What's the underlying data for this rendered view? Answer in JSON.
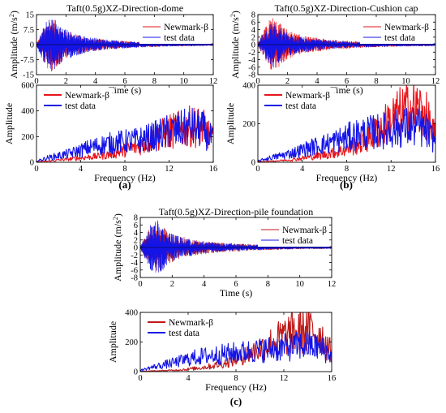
{
  "figure": {
    "panel_labels": [
      "(a)",
      "(b)",
      "(c)"
    ],
    "colors": {
      "newmark": "#e8141b",
      "test": "#1414e6",
      "pile_newmark": "#c01818"
    }
  },
  "chart_data": [
    {
      "type": "line",
      "panel": "a-time",
      "title": "Taft(0.5g)XZ-Direction-dome",
      "xlabel": "Time (s)",
      "ylabel": "Amplitude (m/s2)",
      "xlim": [
        0,
        12
      ],
      "ylim": [
        -15,
        15
      ],
      "xticks": [
        0,
        2,
        4,
        6,
        8,
        10,
        12
      ],
      "yticks": [
        -15,
        -7.5,
        0,
        7.5,
        15
      ],
      "ytick_labels": [
        "-15",
        "-7.5",
        "0",
        "7.5",
        "15"
      ],
      "legend_position": "top-right",
      "series": [
        {
          "name": "Newmark-β",
          "color": "#e8141b",
          "envelope": {
            "t": [
              0,
              0.3,
              0.7,
              1.0,
              1.3,
              1.8,
              2.5,
              3.5,
              5,
              7,
              9,
              12
            ],
            "amp": [
              0.4,
              5,
              12,
              13.5,
              12,
              8,
              5.5,
              3.5,
              2.2,
              1.3,
              0.8,
              0.5
            ]
          }
        },
        {
          "name": "test data",
          "color": "#1414e6",
          "envelope": {
            "t": [
              0,
              0.3,
              0.7,
              1.0,
              1.3,
              1.8,
              2.5,
              3.5,
              5,
              7,
              9,
              12
            ],
            "amp": [
              0.5,
              6,
              12,
              14.5,
              12.5,
              8.5,
              6,
              3.8,
              2.3,
              1.3,
              0.8,
              0.5
            ]
          }
        }
      ]
    },
    {
      "type": "line",
      "panel": "a-freq",
      "title": "",
      "xlabel": "Frequency (Hz)",
      "ylabel": "Amplitude",
      "xlim": [
        0,
        16
      ],
      "ylim": [
        0,
        600
      ],
      "xticks": [
        0,
        4,
        8,
        12,
        16
      ],
      "yticks": [
        0,
        200,
        400,
        600
      ],
      "legend_position": "top-left",
      "series": [
        {
          "name": "Newmark-β",
          "color": "#e8141b",
          "x": [
            0,
            1,
            2,
            3,
            4,
            5,
            6,
            7,
            8,
            9,
            10,
            11,
            12,
            13,
            14,
            15,
            16
          ],
          "y": [
            5,
            10,
            20,
            30,
            40,
            50,
            60,
            80,
            110,
            140,
            180,
            240,
            280,
            300,
            330,
            320,
            200
          ]
        },
        {
          "name": "test data",
          "color": "#1414e6",
          "x": [
            0,
            1,
            2,
            3,
            4,
            5,
            6,
            7,
            8,
            9,
            10,
            11,
            12,
            13,
            14,
            15,
            16
          ],
          "y": [
            10,
            40,
            60,
            80,
            110,
            140,
            160,
            180,
            190,
            200,
            220,
            250,
            280,
            300,
            320,
            300,
            200
          ]
        }
      ]
    },
    {
      "type": "line",
      "panel": "b-time",
      "title": "Taft(0.5g)XZ-Direction-Cushion cap",
      "xlabel": "Time (s)",
      "ylabel": "Amplitude (m/s2)",
      "xlim": [
        0,
        12
      ],
      "ylim": [
        -8,
        8
      ],
      "xticks": [
        0,
        2,
        4,
        6,
        8,
        10,
        12
      ],
      "yticks": [
        -8,
        -6,
        -4,
        -2,
        0,
        2,
        4,
        6,
        8
      ],
      "legend_position": "top-right",
      "series": [
        {
          "name": "Newmark-β",
          "color": "#e8141b",
          "envelope": {
            "t": [
              0,
              0.3,
              0.7,
              1.0,
              1.3,
              1.8,
              2.5,
              3.5,
              5,
              7,
              9,
              12
            ],
            "amp": [
              0.3,
              3,
              6.5,
              7.5,
              6.5,
              4.5,
              3,
              2,
              1.3,
              0.8,
              0.5,
              0.3
            ]
          }
        },
        {
          "name": "test data",
          "color": "#1414e6",
          "envelope": {
            "t": [
              0,
              0.3,
              0.7,
              1.0,
              1.3,
              1.8,
              2.5,
              3.5,
              5,
              7,
              9,
              12
            ],
            "amp": [
              0.3,
              2.5,
              5,
              5.8,
              5,
              3.5,
              2.5,
              1.7,
              1.1,
              0.7,
              0.45,
              0.3
            ]
          }
        }
      ]
    },
    {
      "type": "line",
      "panel": "b-freq",
      "title": "",
      "xlabel": "Frequency (Hz)",
      "ylabel": "Amplitude",
      "xlim": [
        0,
        16
      ],
      "ylim": [
        0,
        400
      ],
      "xticks": [
        0,
        4,
        8,
        12,
        16
      ],
      "yticks": [
        0,
        200,
        400
      ],
      "legend_position": "top-left",
      "series": [
        {
          "name": "Newmark-β",
          "color": "#e8141b",
          "x": [
            0,
            1,
            2,
            3,
            4,
            5,
            6,
            7,
            8,
            9,
            10,
            11,
            12,
            13,
            14,
            15,
            16
          ],
          "y": [
            3,
            6,
            10,
            15,
            25,
            35,
            45,
            60,
            80,
            110,
            150,
            200,
            260,
            300,
            330,
            300,
            150
          ]
        },
        {
          "name": "test data",
          "color": "#1414e6",
          "x": [
            0,
            1,
            2,
            3,
            4,
            5,
            6,
            7,
            8,
            9,
            10,
            11,
            12,
            13,
            14,
            15,
            16
          ],
          "y": [
            8,
            25,
            40,
            55,
            75,
            95,
            110,
            130,
            150,
            170,
            180,
            190,
            200,
            210,
            220,
            200,
            130
          ]
        }
      ]
    },
    {
      "type": "line",
      "panel": "c-time",
      "title": "Taft(0.5g)XZ-Direction-pile foundation",
      "xlabel": "Time (s)",
      "ylabel": "Amplitude (m/s2)",
      "xlim": [
        0,
        12
      ],
      "ylim": [
        -8,
        8
      ],
      "xticks": [
        0,
        2,
        4,
        6,
        8,
        10,
        12
      ],
      "yticks": [
        -8,
        -6,
        -4,
        -2,
        0,
        2,
        4,
        6,
        8
      ],
      "legend_position": "top-right",
      "series": [
        {
          "name": "Newmark-β",
          "color": "#c01818",
          "envelope": {
            "t": [
              0,
              0.3,
              0.7,
              1.0,
              1.3,
              1.8,
              2.5,
              3.5,
              5,
              7,
              9,
              12
            ],
            "amp": [
              0.3,
              3,
              6,
              7,
              6,
              4.2,
              3,
              2,
              1.3,
              0.8,
              0.5,
              0.3
            ]
          }
        },
        {
          "name": "test data",
          "color": "#1414e6",
          "envelope": {
            "t": [
              0,
              0.3,
              0.7,
              1.0,
              1.3,
              1.8,
              2.5,
              3.5,
              5,
              7,
              9,
              12
            ],
            "amp": [
              0.3,
              3,
              6.5,
              7.5,
              6.5,
              4.2,
              2.8,
              1.8,
              1.1,
              0.7,
              0.45,
              0.3
            ]
          }
        }
      ]
    },
    {
      "type": "line",
      "panel": "c-freq",
      "title": "",
      "xlabel": "Frequency (Hz)",
      "ylabel": "Amplitude",
      "xlim": [
        0,
        16
      ],
      "ylim": [
        0,
        400
      ],
      "xticks": [
        0,
        4,
        8,
        12,
        16
      ],
      "yticks": [
        0,
        200,
        400
      ],
      "legend_position": "top-left",
      "series": [
        {
          "name": "Newmark-β",
          "color": "#c01818",
          "x": [
            0,
            1,
            2,
            3,
            4,
            5,
            6,
            7,
            8,
            9,
            10,
            11,
            12,
            13,
            14,
            15,
            16
          ],
          "y": [
            2,
            5,
            8,
            12,
            20,
            30,
            45,
            65,
            100,
            140,
            180,
            230,
            280,
            320,
            330,
            300,
            150
          ]
        },
        {
          "name": "test data",
          "color": "#1414e6",
          "x": [
            0,
            1,
            2,
            3,
            4,
            5,
            6,
            7,
            8,
            9,
            10,
            11,
            12,
            13,
            14,
            15,
            16
          ],
          "y": [
            10,
            35,
            55,
            75,
            100,
            120,
            130,
            140,
            150,
            160,
            170,
            180,
            190,
            200,
            210,
            190,
            130
          ]
        }
      ]
    }
  ]
}
